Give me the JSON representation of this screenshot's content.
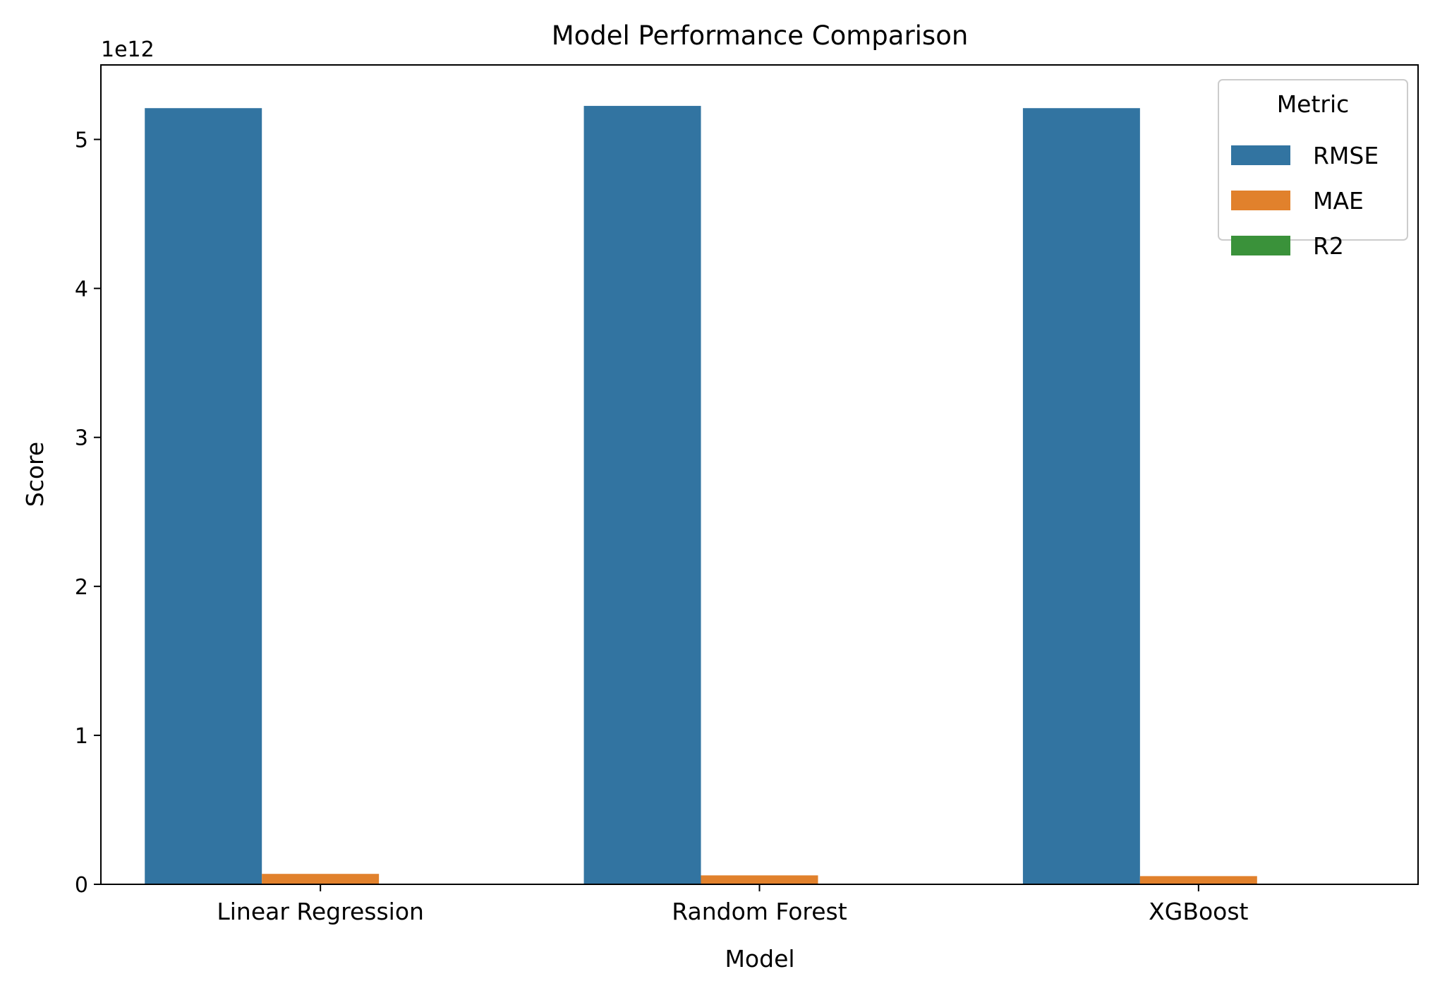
{
  "chart_data": {
    "type": "bar",
    "title": "Model Performance Comparison",
    "xlabel": "Model",
    "ylabel": "Score",
    "offset_label": "1e12",
    "scale": 1000000000000,
    "categories": [
      "Linear Regression",
      "Random Forest",
      "XGBoost"
    ],
    "series": [
      {
        "name": "RMSE",
        "color": "#3274a1",
        "values": [
          5210000000000.0,
          5225000000000.0,
          5210000000000.0
        ]
      },
      {
        "name": "MAE",
        "color": "#e1812c",
        "values": [
          70000000000.0,
          60000000000.0,
          55000000000.0
        ]
      },
      {
        "name": "R2",
        "color": "#3a923a",
        "values": [
          0.5,
          0.5,
          0.5
        ]
      }
    ],
    "ylim": [
      0,
      5500000000000.0
    ],
    "yticks": [
      0,
      1000000000000.0,
      2000000000000.0,
      3000000000000.0,
      4000000000000.0,
      5000000000000.0
    ],
    "ytick_labels": [
      "0",
      "1",
      "2",
      "3",
      "4",
      "5"
    ],
    "grid": false,
    "legend": {
      "title": "Metric",
      "position": "top-right",
      "entries": [
        "RMSE",
        "MAE",
        "R2"
      ]
    }
  }
}
